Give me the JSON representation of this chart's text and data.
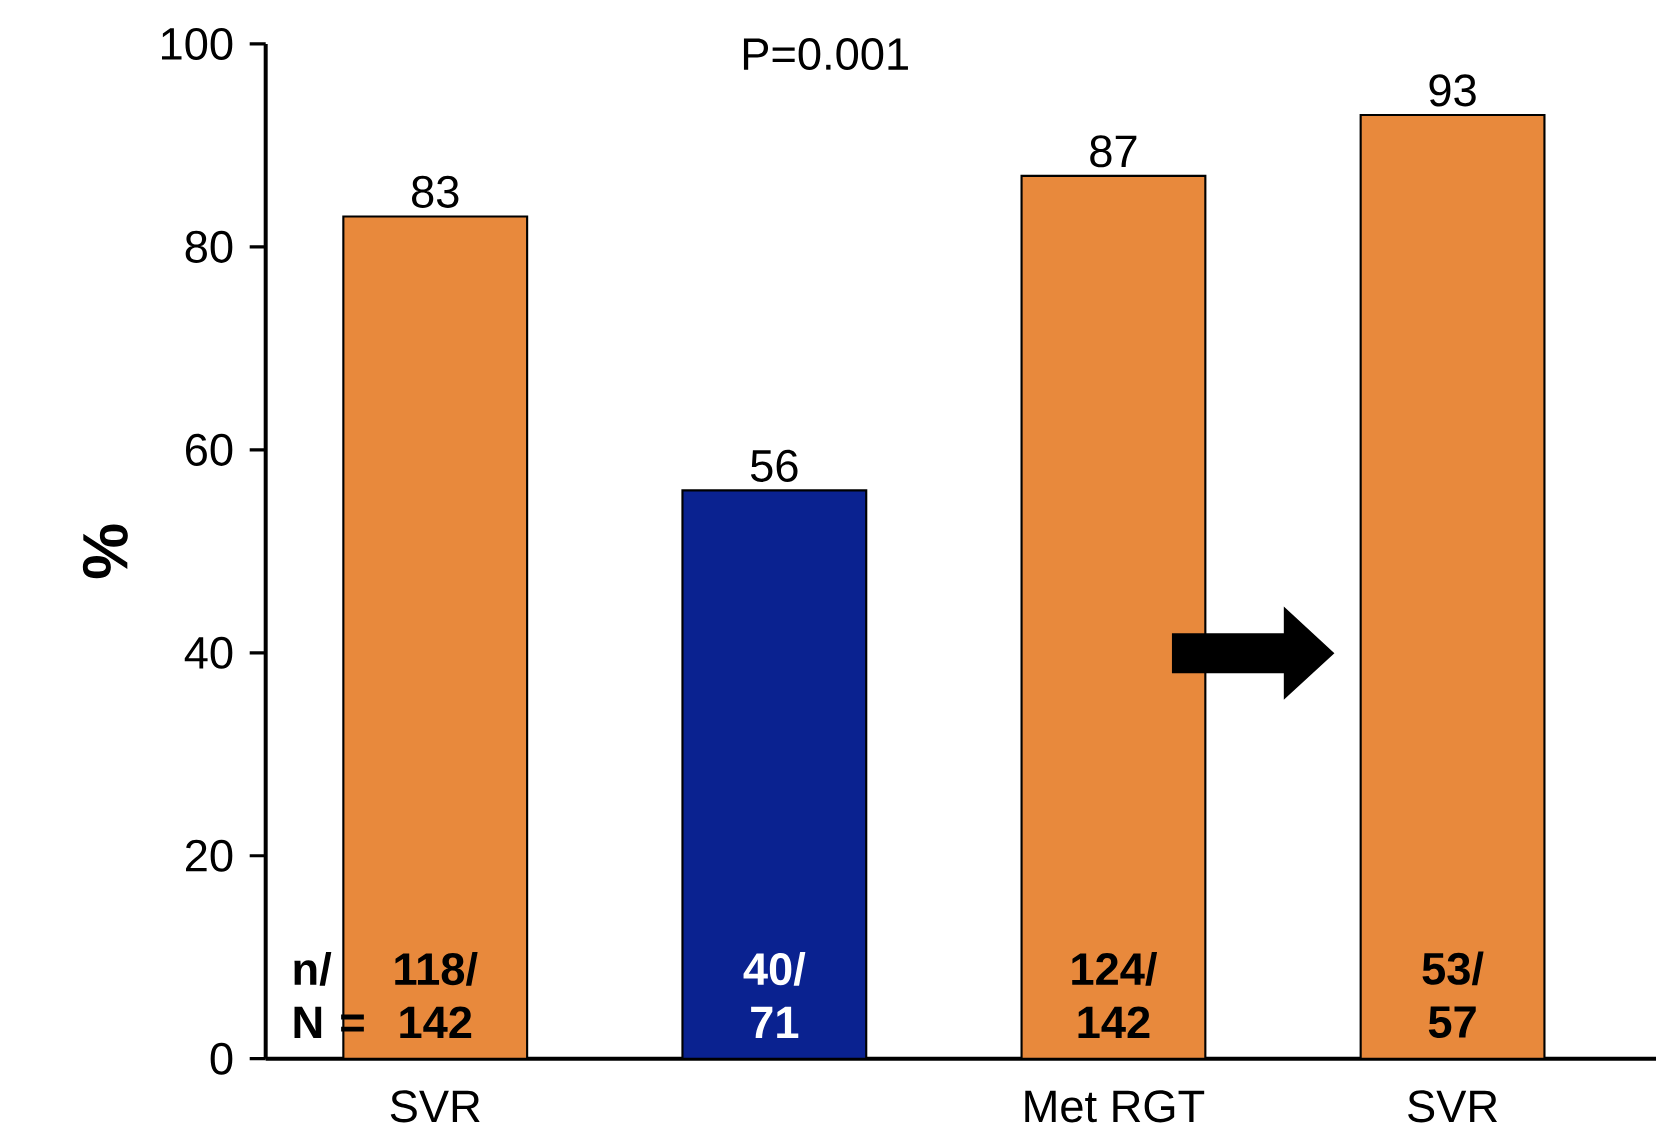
{
  "chart_data": {
    "type": "bar",
    "ylabel": "%",
    "categories": [
      "SVR",
      null,
      "Met RGT",
      "SVR"
    ],
    "values": [
      83,
      56,
      87,
      93
    ],
    "colors": [
      "#e8893c",
      "#0a2290",
      "#e8893c",
      "#e8893c"
    ],
    "ylim": [
      0,
      100
    ],
    "yticks": [
      0,
      20,
      40,
      60,
      80,
      100
    ],
    "data_labels": true,
    "annotations": [
      "P=0.001",
      "n/ N =",
      "118/ 142",
      "40/ 71",
      "124/ 142",
      "53/ 57"
    ]
  }
}
